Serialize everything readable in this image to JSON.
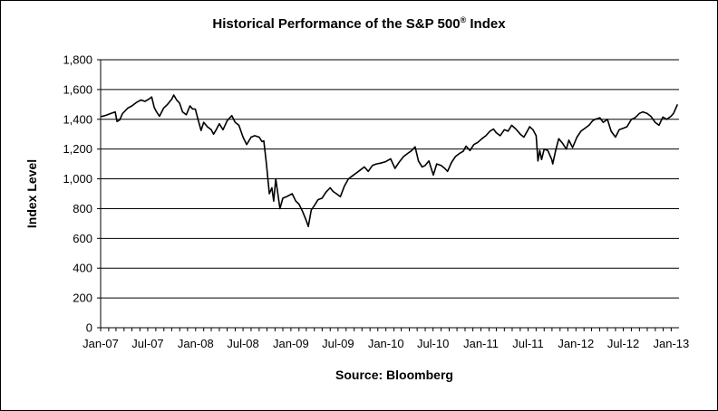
{
  "chart_data": {
    "type": "line",
    "title": "Historical Performance of the S&P 500",
    "title_superscript": "®",
    "title_suffix": " Index",
    "xlabel": "Source: Bloomberg",
    "ylabel": "Index Level",
    "ylim": [
      0,
      1800
    ],
    "yticks": [
      0,
      200,
      400,
      600,
      800,
      1000,
      1200,
      1400,
      1600,
      1800
    ],
    "ytick_labels": [
      "0",
      "200",
      "400",
      "600",
      "800",
      "1,000",
      "1,200",
      "1,400",
      "1,600",
      "1,800"
    ],
    "xlim": [
      "2007-01-01",
      "2013-01-31"
    ],
    "xticks": [
      "2007-01-01",
      "2007-07-01",
      "2008-01-01",
      "2008-07-01",
      "2009-01-01",
      "2009-07-01",
      "2010-01-01",
      "2010-07-01",
      "2011-01-01",
      "2011-07-01",
      "2012-01-01",
      "2012-07-01",
      "2013-01-01"
    ],
    "xtick_labels": [
      "Jan-07",
      "Jul-07",
      "Jan-08",
      "Jul-08",
      "Jan-09",
      "Jul-09",
      "Jan-10",
      "Jul-10",
      "Jan-11",
      "Jul-11",
      "Jan-12",
      "Jul-12",
      "Jan-13"
    ],
    "grid": "horizontal",
    "line_color": "#000000",
    "series": [
      {
        "x": [
          "2007-01-03",
          "2007-01-20",
          "2007-02-10",
          "2007-02-26",
          "2007-03-05",
          "2007-03-15",
          "2007-03-26",
          "2007-04-15",
          "2007-05-01",
          "2007-05-20",
          "2007-06-05",
          "2007-06-20",
          "2007-07-05",
          "2007-07-16",
          "2007-07-26",
          "2007-08-02",
          "2007-08-15",
          "2007-08-31",
          "2007-09-15",
          "2007-10-01",
          "2007-10-09",
          "2007-10-20",
          "2007-10-31",
          "2007-11-12",
          "2007-11-26",
          "2007-12-10",
          "2007-12-20",
          "2007-12-31",
          "2008-01-10",
          "2008-01-22",
          "2008-02-01",
          "2008-02-15",
          "2008-03-01",
          "2008-03-10",
          "2008-03-20",
          "2008-04-01",
          "2008-04-15",
          "2008-05-01",
          "2008-05-19",
          "2008-06-01",
          "2008-06-15",
          "2008-07-01",
          "2008-07-15",
          "2008-08-01",
          "2008-08-15",
          "2008-09-01",
          "2008-09-12",
          "2008-09-19",
          "2008-09-29",
          "2008-10-10",
          "2008-10-20",
          "2008-10-27",
          "2008-11-04",
          "2008-11-20",
          "2008-12-01",
          "2008-12-15",
          "2009-01-06",
          "2009-01-20",
          "2009-02-01",
          "2009-02-15",
          "2009-03-01",
          "2009-03-09",
          "2009-03-20",
          "2009-04-01",
          "2009-04-15",
          "2009-05-01",
          "2009-05-15",
          "2009-06-01",
          "2009-06-12",
          "2009-06-25",
          "2009-07-10",
          "2009-07-25",
          "2009-08-10",
          "2009-08-25",
          "2009-09-10",
          "2009-09-25",
          "2009-10-10",
          "2009-10-25",
          "2009-11-10",
          "2009-11-25",
          "2009-12-10",
          "2009-12-31",
          "2010-01-19",
          "2010-02-05",
          "2010-02-20",
          "2010-03-10",
          "2010-03-25",
          "2010-04-10",
          "2010-04-23",
          "2010-05-06",
          "2010-05-20",
          "2010-06-01",
          "2010-06-15",
          "2010-07-02",
          "2010-07-15",
          "2010-08-01",
          "2010-08-15",
          "2010-08-26",
          "2010-09-10",
          "2010-09-25",
          "2010-10-10",
          "2010-10-25",
          "2010-11-05",
          "2010-11-20",
          "2010-12-05",
          "2010-12-20",
          "2011-01-05",
          "2011-01-20",
          "2011-02-05",
          "2011-02-18",
          "2011-03-01",
          "2011-03-16",
          "2011-04-01",
          "2011-04-15",
          "2011-04-29",
          "2011-05-15",
          "2011-06-01",
          "2011-06-15",
          "2011-07-01",
          "2011-07-07",
          "2011-07-20",
          "2011-08-01",
          "2011-08-08",
          "2011-08-15",
          "2011-08-22",
          "2011-09-01",
          "2011-09-15",
          "2011-09-30",
          "2011-10-04",
          "2011-10-15",
          "2011-10-27",
          "2011-11-10",
          "2011-11-25",
          "2011-12-05",
          "2011-12-19",
          "2012-01-05",
          "2012-01-20",
          "2012-02-05",
          "2012-02-20",
          "2012-03-05",
          "2012-03-15",
          "2012-04-02",
          "2012-04-15",
          "2012-05-01",
          "2012-05-15",
          "2012-06-01",
          "2012-06-15",
          "2012-07-01",
          "2012-07-15",
          "2012-08-01",
          "2012-08-15",
          "2012-09-01",
          "2012-09-14",
          "2012-09-30",
          "2012-10-15",
          "2012-10-31",
          "2012-11-15",
          "2012-11-30",
          "2012-12-15",
          "2012-12-31",
          "2013-01-10",
          "2013-01-25"
        ],
        "y": [
          1418,
          1426,
          1440,
          1450,
          1385,
          1395,
          1438,
          1475,
          1490,
          1515,
          1530,
          1520,
          1535,
          1550,
          1480,
          1455,
          1420,
          1475,
          1500,
          1535,
          1563,
          1530,
          1510,
          1450,
          1430,
          1490,
          1470,
          1468,
          1400,
          1325,
          1380,
          1350,
          1330,
          1300,
          1330,
          1370,
          1330,
          1390,
          1425,
          1380,
          1360,
          1280,
          1230,
          1280,
          1290,
          1280,
          1250,
          1255,
          1100,
          900,
          940,
          850,
          1000,
          800,
          870,
          880,
          900,
          850,
          830,
          780,
          720,
          680,
          790,
          820,
          860,
          870,
          910,
          940,
          915,
          900,
          880,
          950,
          1000,
          1020,
          1040,
          1060,
          1080,
          1050,
          1090,
          1100,
          1105,
          1115,
          1135,
          1070,
          1110,
          1150,
          1170,
          1190,
          1215,
          1120,
          1080,
          1090,
          1120,
          1025,
          1100,
          1090,
          1070,
          1050,
          1110,
          1150,
          1170,
          1185,
          1220,
          1190,
          1230,
          1245,
          1270,
          1290,
          1320,
          1335,
          1310,
          1290,
          1330,
          1320,
          1360,
          1335,
          1300,
          1280,
          1330,
          1350,
          1330,
          1290,
          1120,
          1190,
          1130,
          1200,
          1190,
          1130,
          1100,
          1190,
          1270,
          1240,
          1200,
          1260,
          1210,
          1280,
          1320,
          1340,
          1360,
          1390,
          1400,
          1410,
          1380,
          1400,
          1320,
          1280,
          1330,
          1340,
          1350,
          1400,
          1410,
          1440,
          1450,
          1440,
          1420,
          1380,
          1360,
          1415,
          1400,
          1420,
          1440,
          1500
        ]
      }
    ]
  }
}
